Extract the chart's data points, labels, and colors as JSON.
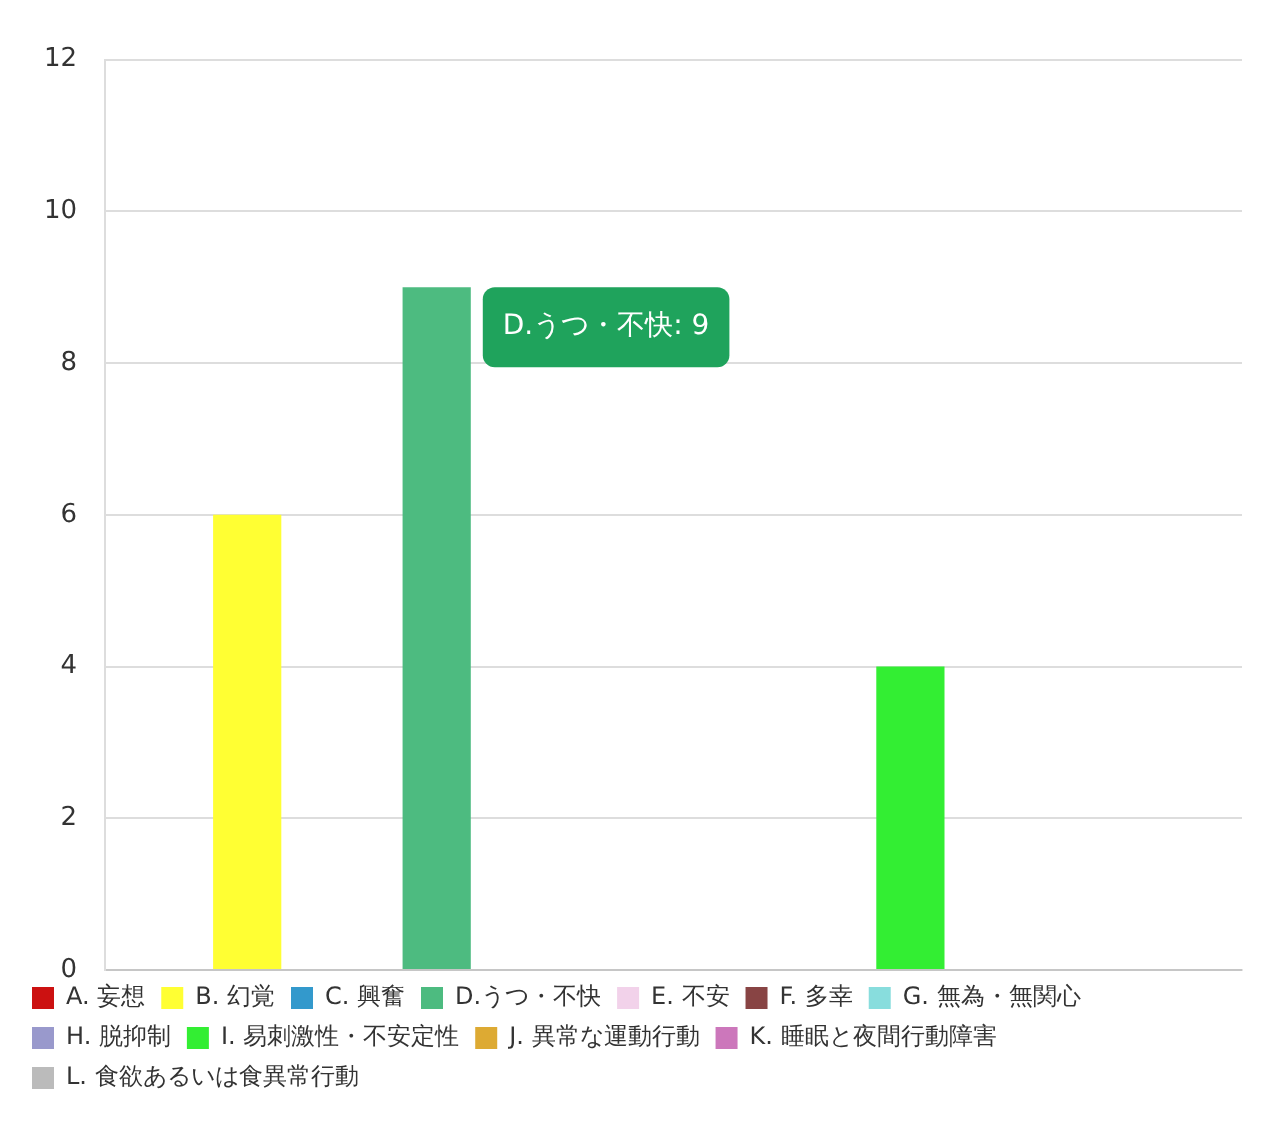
{
  "chart_data": {
    "type": "bar",
    "categories": [
      null
    ],
    "series": [
      {
        "name": "A. 妄想",
        "color": "#cc1111",
        "values": [
          0
        ]
      },
      {
        "name": "B. 幻覚",
        "color": "#ffff33",
        "values": [
          6
        ]
      },
      {
        "name": "C. 興奮",
        "color": "#3399cc",
        "values": [
          0
        ]
      },
      {
        "name": "D.うつ・不快",
        "color": "#4dbb80",
        "values": [
          9
        ]
      },
      {
        "name": "E. 不安",
        "color": "#f2d2ea",
        "values": [
          0
        ]
      },
      {
        "name": "F. 多幸",
        "color": "#884444",
        "values": [
          0
        ]
      },
      {
        "name": "G. 無為・無関心",
        "color": "#88dddd",
        "values": [
          0
        ]
      },
      {
        "name": "H. 脱抑制",
        "color": "#9999cc",
        "values": [
          0
        ]
      },
      {
        "name": "I. 易刺激性・不安定性",
        "color": "#33ee33",
        "values": [
          4
        ]
      },
      {
        "name": "J. 異常な運動行動",
        "color": "#ddaa33",
        "values": [
          0
        ]
      },
      {
        "name": "K. 睡眠と夜間行動障害",
        "color": "#cc77bb",
        "values": [
          0
        ]
      },
      {
        "name": "L. 食欲あるいは食異常行動",
        "color": "#bbbbbb",
        "values": [
          0
        ]
      }
    ],
    "ylim": [
      0,
      12
    ],
    "yticks": [
      0,
      2,
      4,
      6,
      8,
      10,
      12
    ],
    "grid": "y",
    "legend": "bottom",
    "tick_labels": "y",
    "annotations": [
      "D.うつ・不快: 9"
    ]
  }
}
